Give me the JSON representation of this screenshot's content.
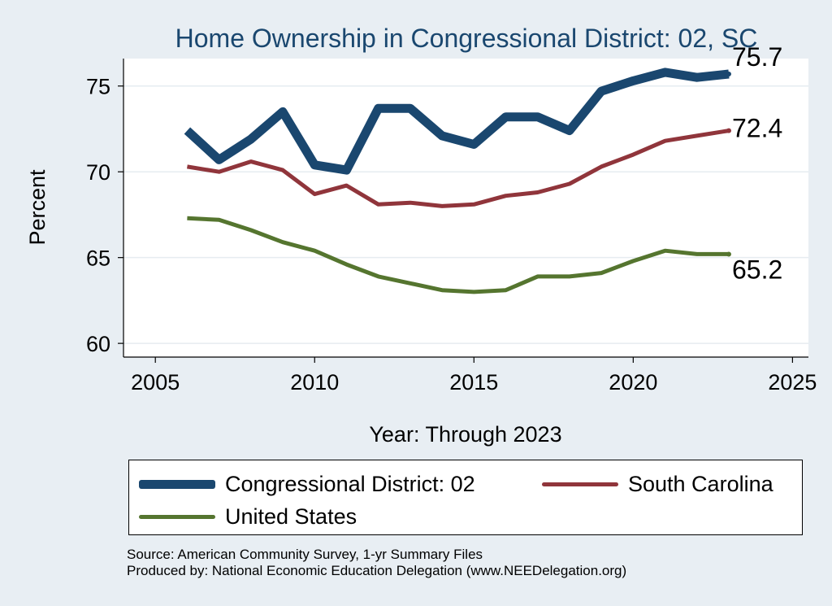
{
  "chart_data": {
    "type": "line",
    "title": "Home Ownership in Congressional District:  02, SC",
    "xlabel": "Year: Through 2023",
    "ylabel": "Percent",
    "xlim": [
      2004,
      2025.5
    ],
    "ylim": [
      59.2,
      76.6
    ],
    "xticks": [
      2005,
      2010,
      2015,
      2020,
      2025
    ],
    "yticks": [
      60,
      65,
      70,
      75
    ],
    "grid": "horizontal",
    "legend_position": "bottom",
    "x": [
      2006,
      2007,
      2008,
      2009,
      2010,
      2011,
      2012,
      2013,
      2014,
      2015,
      2016,
      2017,
      2018,
      2019,
      2020,
      2021,
      2022,
      2023
    ],
    "series": [
      {
        "name": "Congressional District:  02",
        "color": "#1a476f",
        "values": [
          72.4,
          70.7,
          71.9,
          73.5,
          70.4,
          70.1,
          73.7,
          73.7,
          72.1,
          71.6,
          73.2,
          73.2,
          72.4,
          74.7,
          75.3,
          75.8,
          75.5,
          75.7
        ],
        "end_label": "75.7"
      },
      {
        "name": "South Carolina",
        "color": "#90353b",
        "values": [
          70.3,
          70.0,
          70.6,
          70.1,
          68.7,
          69.2,
          68.1,
          68.2,
          68.0,
          68.1,
          68.6,
          68.8,
          69.3,
          70.3,
          71.0,
          71.8,
          72.1,
          72.4
        ],
        "end_label": "72.4"
      },
      {
        "name": "United States",
        "color": "#55752f",
        "values": [
          67.3,
          67.2,
          66.6,
          65.9,
          65.4,
          64.6,
          63.9,
          63.5,
          63.1,
          63.0,
          63.1,
          63.9,
          63.9,
          64.1,
          64.8,
          65.4,
          65.2,
          65.2
        ],
        "end_label": "65.2"
      }
    ]
  },
  "footer": {
    "source": "Source: American Community Survey, 1-yr Summary Files",
    "produced_by": "Produced by: National Economic Education Delegation (www.NEEDelegation.org)"
  }
}
